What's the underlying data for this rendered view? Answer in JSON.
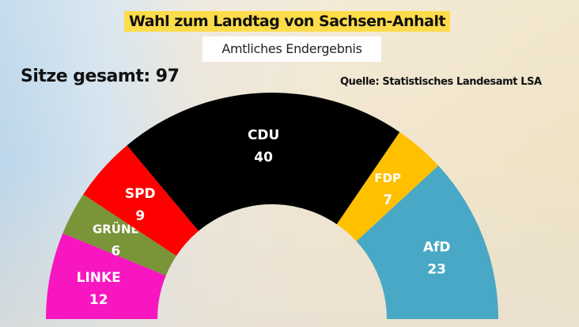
{
  "header": {
    "title": "Wahl zum Landtag von Sachsen-Anhalt",
    "subtitle": "Amtliches Endergebnis"
  },
  "total_label": "Sitze gesamt: 97",
  "source": "Quelle: Statistisches Landesamt LSA",
  "chart_data": {
    "type": "pie",
    "variant": "semicircle-donut",
    "total": 97,
    "categories": [
      "LINKE",
      "GRÜNE",
      "SPD",
      "CDU",
      "FDP",
      "AfD"
    ],
    "values": [
      12,
      6,
      9,
      40,
      7,
      23
    ],
    "colors": [
      "#f716c0",
      "#7a9438",
      "#fe0000",
      "#000000",
      "#ffc000",
      "#48a8c5"
    ]
  }
}
